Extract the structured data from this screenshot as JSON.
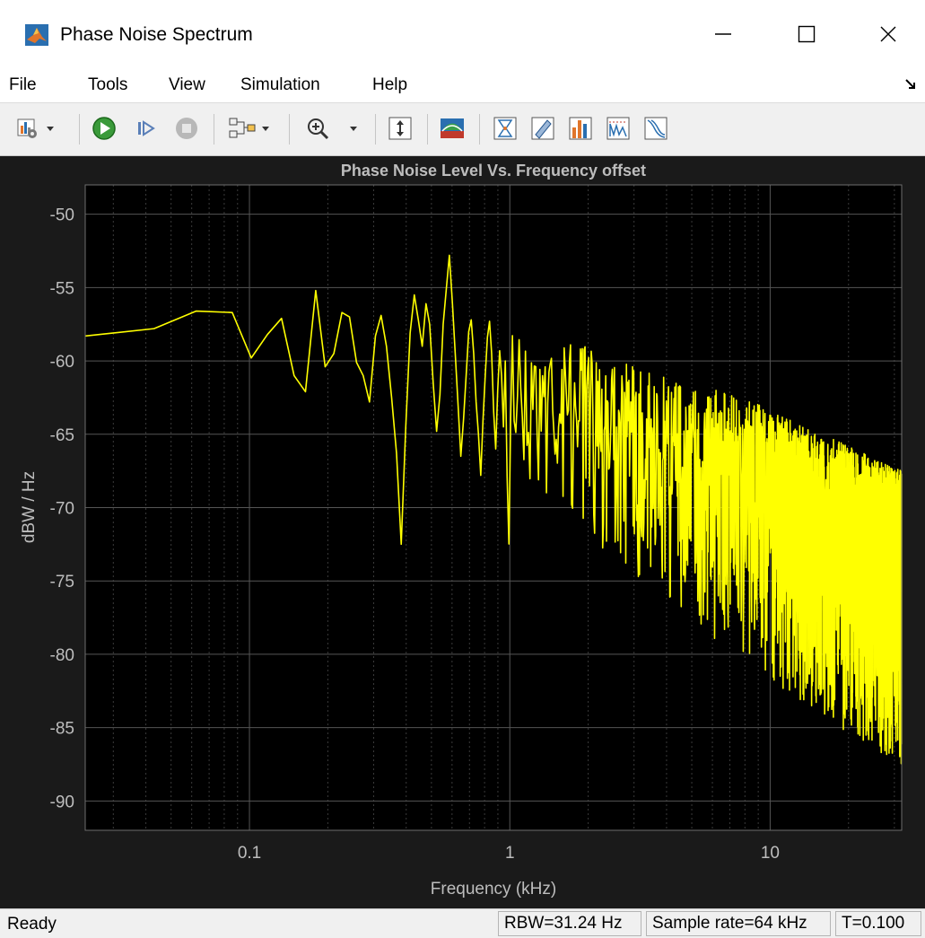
{
  "window": {
    "title": "Phase Noise Spectrum"
  },
  "menu": {
    "items": [
      "File",
      "Tools",
      "View",
      "Simulation",
      "Help"
    ]
  },
  "toolbar": {
    "icons": [
      "settings-icon",
      "run-icon",
      "step-forward-icon",
      "stop-icon",
      "signal-select-icon",
      "zoom-in-icon",
      "scale-axes-icon",
      "spectrum-settings-icon",
      "data-cursors-icon",
      "measure-icon",
      "peak-finder-icon",
      "distortion-icon",
      "ccdf-icon"
    ]
  },
  "status": {
    "ready": "Ready",
    "rbw": "RBW=31.24 Hz",
    "sample_rate": "Sample rate=64 kHz",
    "time": "T=0.100"
  },
  "colors": {
    "plot_background": "#000000",
    "figure_background": "#1a1a1a",
    "trace": "#ffff00",
    "grid": "#4d4d4d",
    "text": "#c8c8c8"
  },
  "chart_data": {
    "type": "line",
    "title": "Phase Noise Level Vs. Frequency offset",
    "xlabel": "Frequency (kHz)",
    "ylabel": "dBW / Hz",
    "xscale": "log",
    "xlim": [
      0.0234,
      32
    ],
    "ylim": [
      -92,
      -48
    ],
    "xticks": [
      0.1,
      1,
      10
    ],
    "xtick_labels": [
      "0.1",
      "1",
      "10"
    ],
    "yticks": [
      -50,
      -55,
      -60,
      -65,
      -70,
      -75,
      -80,
      -85,
      -90
    ],
    "ytick_labels": [
      "-50",
      "-55",
      "-60",
      "-65",
      "-70",
      "-75",
      "-80",
      "-85",
      "-90"
    ],
    "grid": true,
    "series": [
      {
        "color": "#ffff00",
        "x": [
          0.0234,
          0.043,
          0.0625,
          0.0859,
          0.1016,
          0.1172,
          0.1328,
          0.1484,
          0.1641,
          0.1797,
          0.1953,
          0.2109,
          0.2266,
          0.2422,
          0.2578,
          0.2734,
          0.2891,
          0.3047,
          0.3203,
          0.3359,
          0.3516,
          0.3672,
          0.3828,
          0.3984,
          0.4141,
          0.4297,
          0.4453,
          0.4609,
          0.4766,
          0.4922,
          0.5078,
          0.5234,
          0.5391,
          0.5547,
          0.5703,
          0.5859,
          0.6016,
          0.6172,
          0.6328,
          0.6484,
          0.6641,
          0.6797,
          0.6953,
          0.7109,
          0.7266,
          0.7422,
          0.7578,
          0.7734,
          0.7891,
          0.8047,
          0.8203,
          0.8359,
          0.8516,
          0.8672,
          0.8828,
          0.8984,
          0.9141,
          0.9297,
          0.9453,
          0.9609
        ],
        "y": [
          -58.3,
          -57.8,
          -56.6,
          -56.7,
          -59.8,
          -58.2,
          -57.1,
          -61.0,
          -62.1,
          -55.2,
          -60.4,
          -59.5,
          -56.7,
          -57.0,
          -60.1,
          -61.0,
          -62.8,
          -58.3,
          -56.9,
          -59.0,
          -62.5,
          -66.3,
          -72.5,
          -64.5,
          -58.1,
          -55.5,
          -57.2,
          -59.0,
          -56.1,
          -57.5,
          -61.5,
          -64.8,
          -62.3,
          -57.5,
          -55.1,
          -52.8,
          -56.0,
          -59.5,
          -63.0,
          -66.5,
          -64.0,
          -61.0,
          -58.0,
          -57.2,
          -59.5,
          -62.8,
          -65.0,
          -67.8,
          -64.0,
          -61.0,
          -58.4,
          -57.3,
          -59.5,
          -63.5,
          -66.0,
          -62.0,
          -59.3,
          -61.0,
          -64.5,
          -60.0
        ]
      }
    ],
    "noise_envelope": {
      "x": [
        1.0,
        2.0,
        4.0,
        8.0,
        16.0,
        32.0
      ],
      "mean": [
        -61.5,
        -63.5,
        -66.2,
        -68.5,
        -71.5,
        -75.0
      ],
      "top": [
        -57.5,
        -59.0,
        -61.0,
        -62.5,
        -65.0,
        -67.5
      ],
      "bottom": [
        -68.0,
        -72.0,
        -76.5,
        -80.5,
        -84.5,
        -87.5
      ]
    }
  }
}
